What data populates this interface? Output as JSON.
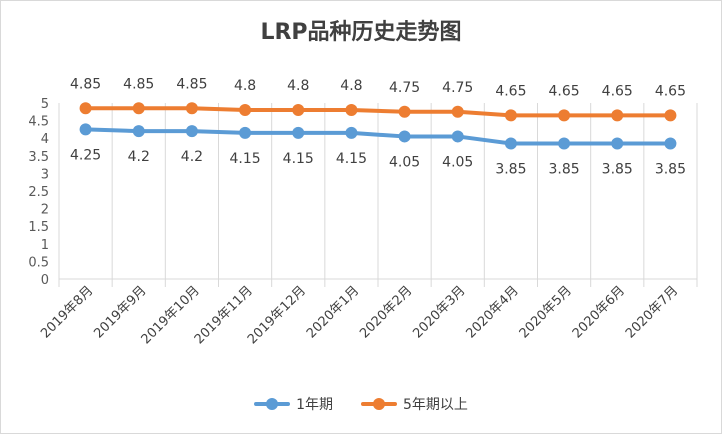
{
  "chart_data": {
    "type": "line",
    "title": "LRP品种历史走势图",
    "categories": [
      "2019年8月",
      "2019年9月",
      "2019年10月",
      "2019年11月",
      "2019年12月",
      "2020年1月",
      "2020年2月",
      "2020年3月",
      "2020年4月",
      "2020年5月",
      "2020年6月",
      "2020年7月"
    ],
    "series": [
      {
        "name": "1年期",
        "color": "#5b9bd5",
        "values": [
          4.25,
          4.2,
          4.2,
          4.15,
          4.15,
          4.15,
          4.05,
          4.05,
          3.85,
          3.85,
          3.85,
          3.85
        ],
        "label_position": "below"
      },
      {
        "name": "5年期以上",
        "color": "#ed7d31",
        "values": [
          4.85,
          4.85,
          4.85,
          4.8,
          4.8,
          4.8,
          4.75,
          4.75,
          4.65,
          4.65,
          4.65,
          4.65
        ],
        "label_position": "above"
      }
    ],
    "ylim": [
      0,
      5
    ],
    "yticks": [
      "0",
      "0.5",
      "1",
      "1.5",
      "2",
      "2.5",
      "3",
      "3.5",
      "4",
      "4.5",
      "5"
    ],
    "grid": "vertical",
    "legend": "bottom"
  }
}
